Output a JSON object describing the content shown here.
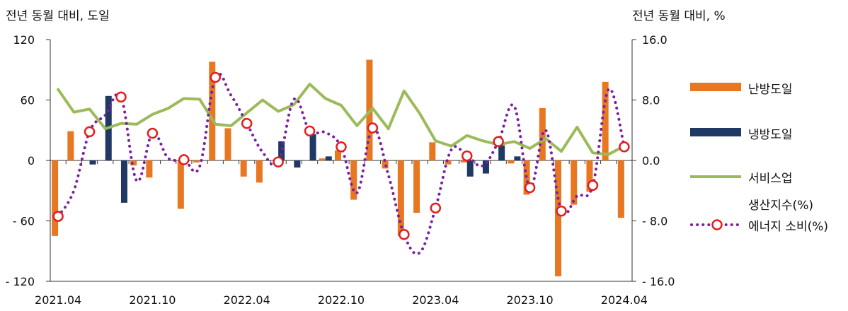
{
  "chart_data": {
    "type": "bar+line",
    "left_unit_label": "전년 동월 대비, 도일",
    "right_unit_label": "전년 동월 대비, %",
    "y_left": {
      "min": -120,
      "max": 120,
      "ticks": [
        120,
        60,
        0,
        -60,
        -120
      ],
      "tick_labels": [
        "120",
        "60",
        "0",
        "- 60",
        "- 120"
      ]
    },
    "y_right": {
      "min": -16,
      "max": 16,
      "ticks": [
        16,
        8,
        0,
        -8,
        -16
      ],
      "tick_labels": [
        "16.0",
        "8.0",
        "0.0",
        "- 8.0",
        "- 16.0"
      ]
    },
    "x_months": [
      "2021.04",
      "2021.05",
      "2021.06",
      "2021.07",
      "2021.08",
      "2021.09",
      "2021.10",
      "2021.11",
      "2021.12",
      "2022.01",
      "2022.02",
      "2022.03",
      "2022.04",
      "2022.05",
      "2022.06",
      "2022.07",
      "2022.08",
      "2022.09",
      "2022.10",
      "2022.11",
      "2022.12",
      "2023.01",
      "2023.02",
      "2023.03",
      "2023.04",
      "2023.05",
      "2023.06",
      "2023.07",
      "2023.08",
      "2023.09",
      "2023.10",
      "2023.11",
      "2023.12",
      "2024.01",
      "2024.02",
      "2024.03",
      "2024.04"
    ],
    "x_tick_labels": [
      "2021.04",
      "2021.10",
      "2022.04",
      "2022.10",
      "2023.04",
      "2023.10",
      "2024.04"
    ],
    "x_tick_indices": [
      0,
      6,
      12,
      18,
      24,
      30,
      36
    ],
    "series": [
      {
        "name": "난방도일",
        "type": "bar",
        "axis": "left",
        "color": "#E87722",
        "values": [
          -75,
          29,
          0,
          0,
          0,
          -5,
          -17,
          0,
          -48,
          -2,
          98,
          32,
          -16,
          -22,
          0,
          0,
          0,
          2,
          10,
          -39,
          100,
          -8,
          -75,
          -52,
          18,
          -4,
          -2,
          0,
          0,
          -3,
          -34,
          52,
          -115,
          -44,
          -31,
          78,
          -57
        ]
      },
      {
        "name": "냉방도일",
        "type": "bar",
        "axis": "left",
        "color": "#1F3864",
        "values": [
          0,
          0,
          -4,
          64,
          -42,
          0,
          0,
          0,
          0,
          0,
          0,
          0,
          0,
          0,
          19,
          -7,
          26,
          4,
          0,
          0,
          0,
          0,
          0,
          0,
          0,
          0,
          -16,
          -13,
          15,
          4,
          0,
          0,
          0,
          0,
          0,
          0,
          0
        ]
      },
      {
        "name": "서비스업 생산지수(%)",
        "type": "line",
        "axis": "right",
        "color": "#9BBB59",
        "values": [
          9.4,
          6.4,
          6.8,
          4.2,
          4.9,
          4.8,
          6.1,
          6.9,
          8.2,
          8.1,
          4.8,
          4.6,
          6.3,
          8.0,
          6.5,
          7.4,
          10.1,
          8.2,
          7.3,
          4.6,
          6.9,
          4.2,
          9.2,
          6.2,
          2.6,
          1.9,
          3.3,
          2.6,
          2.1,
          2.5,
          1.6,
          2.9,
          1.2,
          4.4,
          1.0,
          0.8,
          1.9
        ]
      },
      {
        "name": "에너지 소비(%)",
        "type": "line-marker",
        "axis": "right",
        "color": "#7B1FA2",
        "marker_color": "#E31E1E",
        "values": [
          -7.4,
          -4.0,
          3.8,
          6.0,
          8.4,
          -2.7,
          3.6,
          0.3,
          0.1,
          -0.8,
          11.0,
          8.6,
          4.9,
          1.1,
          -0.2,
          8.1,
          3.9,
          3.7,
          1.8,
          -4.3,
          4.3,
          -1.9,
          -9.8,
          -12.2,
          -6.3,
          1.4,
          0.6,
          -0.7,
          2.5,
          7.2,
          -3.6,
          4.0,
          -6.7,
          -4.7,
          -3.3,
          9.4,
          1.8
        ]
      }
    ],
    "legend": {
      "position": "right",
      "items": [
        {
          "label": "난방도일"
        },
        {
          "label": "냉방도일"
        },
        {
          "label_line1": "서비스업",
          "label_line2": "생산지수(%)"
        },
        {
          "label": "에너지 소비(%)"
        }
      ]
    },
    "grid": false
  }
}
